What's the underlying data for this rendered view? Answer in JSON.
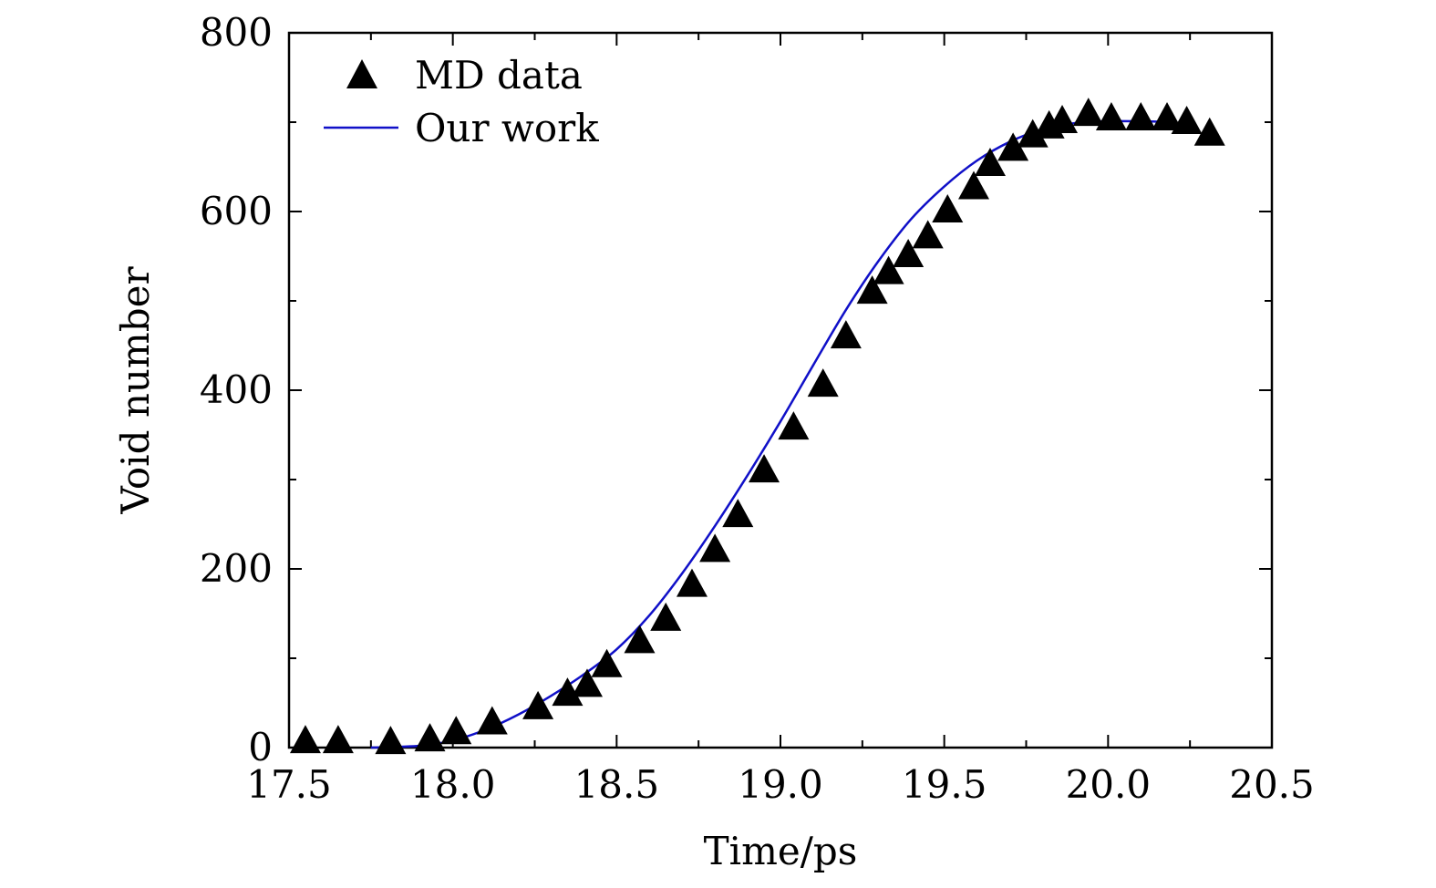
{
  "chart_data": {
    "type": "scatter",
    "title": "",
    "xlabel": "Time/ps",
    "ylabel": "Void number",
    "xlim": [
      17.5,
      20.5
    ],
    "ylim": [
      0,
      800
    ],
    "x_ticks": [
      17.5,
      18.0,
      18.5,
      19.0,
      19.5,
      20.0,
      20.5
    ],
    "x_tick_labels": [
      "17.5",
      "18.0",
      "18.5",
      "19.0",
      "19.5",
      "20.0",
      "20.5"
    ],
    "y_ticks": [
      0,
      200,
      400,
      600,
      800
    ],
    "y_tick_labels": [
      "0",
      "200",
      "400",
      "600",
      "800"
    ],
    "grid": false,
    "legend_position": "top-left",
    "series": [
      {
        "name": "MD data",
        "kind": "scatter",
        "marker": "triangle",
        "color": "#000000",
        "x": [
          17.55,
          17.65,
          17.81,
          17.93,
          18.01,
          18.12,
          18.26,
          18.35,
          18.41,
          18.47,
          18.57,
          18.65,
          18.73,
          18.8,
          18.87,
          18.95,
          19.04,
          19.13,
          19.2,
          19.28,
          19.33,
          19.39,
          19.45,
          19.51,
          19.59,
          19.64,
          19.71,
          19.77,
          19.82,
          19.86,
          19.94,
          20.01,
          20.1,
          20.18,
          20.24,
          20.31
        ],
        "y": [
          5,
          5,
          4,
          7,
          15,
          26,
          43,
          58,
          68,
          90,
          117,
          142,
          180,
          219,
          258,
          308,
          356,
          404,
          458,
          508,
          530,
          549,
          570,
          599,
          625,
          651,
          668,
          683,
          693,
          699,
          707,
          702,
          702,
          702,
          698,
          685
        ]
      },
      {
        "name": "Our work",
        "kind": "line",
        "color": "#1010c8",
        "x": [
          17.75,
          17.9,
          18.0,
          18.1,
          18.2,
          18.3,
          18.4,
          18.5,
          18.6,
          18.7,
          18.8,
          18.9,
          19.0,
          19.1,
          19.2,
          19.3,
          19.4,
          19.5,
          19.6,
          19.7,
          19.8,
          19.9,
          20.0,
          20.1,
          20.2
        ],
        "y": [
          0,
          2,
          8,
          20,
          37,
          58,
          82,
          110,
          148,
          195,
          248,
          305,
          365,
          428,
          490,
          545,
          592,
          628,
          657,
          678,
          692,
          699,
          701,
          701,
          700
        ]
      }
    ]
  }
}
